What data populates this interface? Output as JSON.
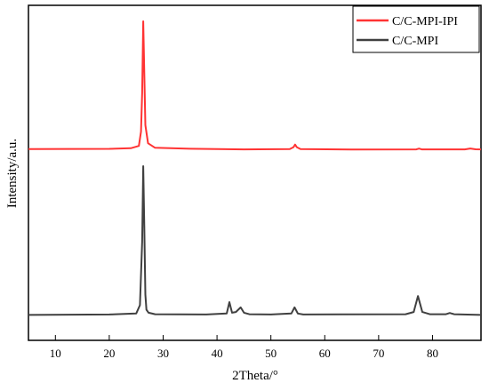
{
  "chart_data": {
    "type": "line",
    "xlabel": "2Theta/°",
    "ylabel": "Intensity/a.u.",
    "xlim": [
      5,
      89
    ],
    "xticks": [
      10,
      20,
      30,
      40,
      50,
      60,
      70,
      80
    ],
    "yticks": "none",
    "grid": false,
    "legend": "top-right",
    "series": [
      {
        "name": "C/C-MPI-IPI",
        "color": "#ff3333",
        "x": [
          5,
          20,
          24,
          25.5,
          25.9,
          26.1,
          26.3,
          26.5,
          26.7,
          27.2,
          28.5,
          35,
          45,
          53.5,
          54.2,
          54.5,
          54.8,
          55.5,
          65,
          77,
          77.5,
          78,
          86,
          87,
          88,
          89
        ],
        "y": [
          1.5,
          1.7,
          2.2,
          4,
          15,
          45,
          100,
          60,
          20,
          6,
          2.5,
          1.8,
          1.3,
          1.5,
          3,
          5,
          3,
          1.5,
          1.2,
          1.3,
          1.9,
          1.3,
          1.3,
          2,
          1.4,
          1.3
        ]
      },
      {
        "name": "C/C-MPI",
        "color": "#404040",
        "x": [
          5,
          20,
          25,
          25.7,
          26.1,
          26.3,
          26.5,
          26.7,
          26.9,
          27.3,
          28.5,
          38,
          41.8,
          42.3,
          42.8,
          43.5,
          44.4,
          45,
          46,
          50,
          53.8,
          54.4,
          55,
          56,
          75,
          76.5,
          77.3,
          78.1,
          79.5,
          82.5,
          83.2,
          84,
          89
        ],
        "y": [
          1.5,
          1.8,
          2.5,
          8,
          50,
          100,
          60,
          15,
          5,
          3,
          2,
          1.8,
          2.5,
          10,
          3,
          3.5,
          6.5,
          3,
          2,
          1.8,
          2.5,
          6.5,
          2.5,
          1.8,
          2,
          3.5,
          14,
          3.5,
          2,
          2,
          2.8,
          2,
          1.5
        ]
      }
    ]
  }
}
